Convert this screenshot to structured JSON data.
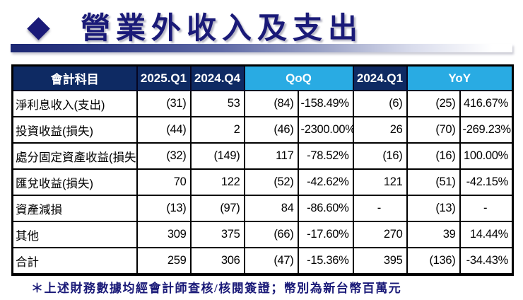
{
  "slide": {
    "title": "營業外收入及支出",
    "footnote": "＊上述財務數據均經會計師查核/核閱簽證；幣別為新台幣百萬元"
  },
  "colors": {
    "header_navy": "#0e2a63",
    "header_cyan": "#29abe3",
    "title_navy": "#1a1a78"
  },
  "table": {
    "headers": {
      "account": "會計科目",
      "q1_2025": "2025.Q1",
      "q4_2024": "2024.Q4",
      "qoq": "QoQ",
      "q1_2024": "2024.Q1",
      "yoy": "YoY"
    },
    "column_keys": [
      "account",
      "q1_2025",
      "q4_2024",
      "qoq_diff",
      "qoq_pct",
      "q1_2024",
      "yoy_diff",
      "yoy_pct"
    ],
    "rows": [
      {
        "account": "淨利息收入(支出)",
        "q1_2025": "(31)",
        "q4_2024": "53",
        "qoq_diff": "(84)",
        "qoq_pct": "-158.49%",
        "q1_2024": "(6)",
        "yoy_diff": "(25)",
        "yoy_pct": "416.67%"
      },
      {
        "account": "投資收益(損失)",
        "q1_2025": "(44)",
        "q4_2024": "2",
        "qoq_diff": "(46)",
        "qoq_pct": "-2300.00%",
        "q1_2024": "26",
        "yoy_diff": "(70)",
        "yoy_pct": "-269.23%"
      },
      {
        "account": "處分固定資產收益(損失)",
        "q1_2025": "(32)",
        "q4_2024": "(149)",
        "qoq_diff": "117",
        "qoq_pct": "-78.52%",
        "q1_2024": "(16)",
        "yoy_diff": "(16)",
        "yoy_pct": "100.00%"
      },
      {
        "account": "匯兌收益(損失)",
        "q1_2025": "70",
        "q4_2024": "122",
        "qoq_diff": "(52)",
        "qoq_pct": "-42.62%",
        "q1_2024": "121",
        "yoy_diff": "(51)",
        "yoy_pct": "-42.15%"
      },
      {
        "account": "資產減損",
        "q1_2025": "(13)",
        "q4_2024": "(97)",
        "qoq_diff": "84",
        "qoq_pct": "-86.60%",
        "q1_2024": "-",
        "yoy_diff": "(13)",
        "yoy_pct": "-"
      },
      {
        "account": "其他",
        "q1_2025": "309",
        "q4_2024": "375",
        "qoq_diff": "(66)",
        "qoq_pct": "-17.60%",
        "q1_2024": "270",
        "yoy_diff": "39",
        "yoy_pct": "14.44%"
      },
      {
        "account": "合計",
        "q1_2025": "259",
        "q4_2024": "306",
        "qoq_diff": "(47)",
        "qoq_pct": "-15.36%",
        "q1_2024": "395",
        "yoy_diff": "(136)",
        "yoy_pct": "-34.43%"
      }
    ]
  }
}
